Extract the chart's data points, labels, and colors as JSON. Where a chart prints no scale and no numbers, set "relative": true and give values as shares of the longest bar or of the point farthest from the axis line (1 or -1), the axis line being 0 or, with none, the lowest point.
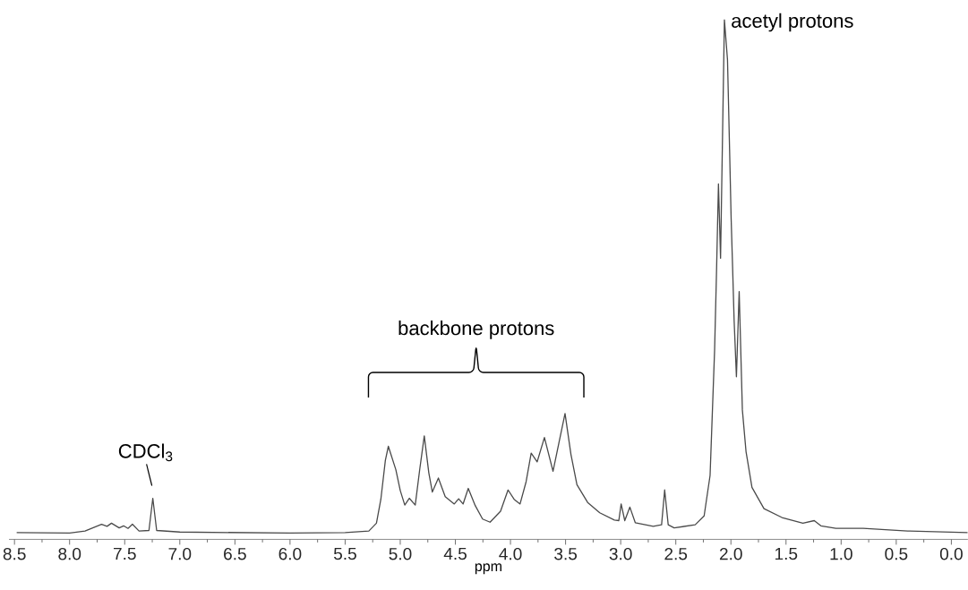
{
  "chart_data": {
    "type": "line",
    "relative": true,
    "color": "#4a4a4a",
    "xlabel": "ppm",
    "xlim": [
      8.55,
      -0.15
    ],
    "xticks": [
      {
        "value": 8.5,
        "label": "8.5"
      },
      {
        "value": 8,
        "label": "8.0"
      },
      {
        "value": 7.5,
        "label": "7.5"
      },
      {
        "value": 7,
        "label": "7.0"
      },
      {
        "value": 6.5,
        "label": "6.5"
      },
      {
        "value": 6,
        "label": "6.0"
      },
      {
        "value": 5.5,
        "label": "5.5"
      },
      {
        "value": 5,
        "label": "5.0"
      },
      {
        "value": 4.5,
        "label": "4.5"
      },
      {
        "value": 4,
        "label": "4.0"
      },
      {
        "value": 3.5,
        "label": "3.5"
      },
      {
        "value": 3,
        "label": "3.0"
      },
      {
        "value": 2.5,
        "label": "2.5"
      },
      {
        "value": 2,
        "label": "2.0"
      },
      {
        "value": 1.5,
        "label": "1.5"
      },
      {
        "value": 1,
        "label": "1.0"
      },
      {
        "value": 0.5,
        "label": "0.5"
      },
      {
        "value": 0,
        "label": "0.0"
      }
    ],
    "x": [
      8.48,
      8.0,
      7.86,
      7.71,
      7.66,
      7.62,
      7.55,
      7.51,
      7.47,
      7.43,
      7.37,
      7.28,
      7.245,
      7.21,
      7.0,
      6.0,
      5.5,
      5.285,
      5.216,
      5.176,
      5.135,
      5.108,
      5.04,
      5.0,
      4.959,
      4.918,
      4.864,
      4.823,
      4.782,
      4.741,
      4.709,
      4.654,
      4.592,
      4.51,
      4.47,
      4.43,
      4.383,
      4.32,
      4.253,
      4.185,
      4.09,
      4.022,
      3.967,
      3.913,
      3.858,
      3.812,
      3.758,
      3.692,
      3.614,
      3.56,
      3.505,
      3.451,
      3.397,
      3.3,
      3.19,
      3.057,
      3.017,
      2.996,
      2.963,
      2.917,
      2.868,
      2.705,
      2.629,
      2.601,
      2.569,
      2.515,
      2.324,
      2.243,
      2.189,
      2.148,
      2.13,
      2.113,
      2.094,
      2.059,
      2.031,
      2.012,
      1.998,
      1.985,
      1.971,
      1.95,
      1.925,
      1.896,
      1.863,
      1.809,
      1.7,
      1.537,
      1.347,
      1.244,
      1.184,
      1.048,
      0.8,
      0.397,
      -0.147
    ],
    "values": [
      0.013,
      0.012,
      0.016,
      0.029,
      0.025,
      0.031,
      0.022,
      0.026,
      0.021,
      0.029,
      0.016,
      0.017,
      0.079,
      0.017,
      0.014,
      0.012,
      0.013,
      0.016,
      0.031,
      0.077,
      0.152,
      0.179,
      0.134,
      0.094,
      0.066,
      0.079,
      0.066,
      0.135,
      0.199,
      0.128,
      0.091,
      0.118,
      0.082,
      0.068,
      0.078,
      0.068,
      0.098,
      0.065,
      0.039,
      0.033,
      0.054,
      0.095,
      0.077,
      0.068,
      0.111,
      0.166,
      0.149,
      0.196,
      0.131,
      0.186,
      0.242,
      0.163,
      0.105,
      0.071,
      0.051,
      0.037,
      0.036,
      0.068,
      0.036,
      0.062,
      0.032,
      0.025,
      0.028,
      0.095,
      0.028,
      0.022,
      0.028,
      0.045,
      0.123,
      0.364,
      0.52,
      0.684,
      0.541,
      1.0,
      0.923,
      0.75,
      0.618,
      0.526,
      0.422,
      0.313,
      0.477,
      0.249,
      0.169,
      0.1,
      0.059,
      0.042,
      0.031,
      0.036,
      0.026,
      0.021,
      0.021,
      0.016,
      0.013
    ],
    "annotations": [
      {
        "text": "CDCl$_{3}$",
        "x": 7.245,
        "y": 0.079
      },
      "backbone protons",
      {
        "text": "acetyl protons",
        "x": 2.059,
        "y": 1.0
      }
    ]
  }
}
